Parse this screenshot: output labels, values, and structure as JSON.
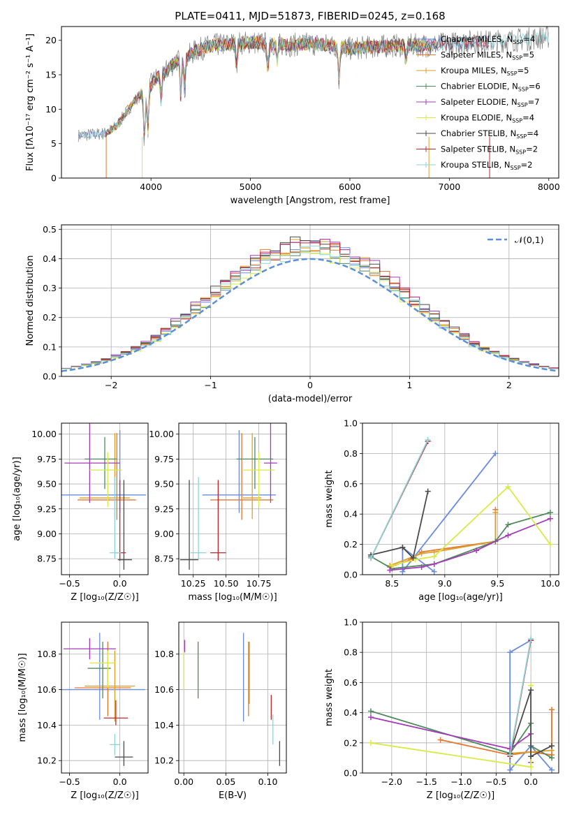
{
  "figure_title": "PLATE=0411, MJD=51873, FIBERID=0245, z=0.168",
  "model_colors": [
    "#6a8be0",
    "#e6772e",
    "#db9f2c",
    "#4d8a5c",
    "#a43bb8",
    "#d8ea45",
    "#4a4a4a",
    "#c0262c",
    "#8fd3d8"
  ],
  "chart_data": [
    {
      "id": "spectrum",
      "type": "line",
      "title": "PLATE=0411, MJD=51873, FIBERID=0245, z=0.168",
      "xlabel": "wavelength [Angstrom, rest frame]",
      "ylabel": "Flux [fλ10⁻¹⁷ erg cm⁻² s⁻¹ A⁻¹]",
      "xlim": [
        3100,
        8100
      ],
      "ylim": [
        0,
        22
      ],
      "xticks": [
        4000,
        5000,
        6000,
        7000,
        8000
      ],
      "yticks": [
        0,
        5,
        10,
        15,
        20
      ],
      "grid": false,
      "legend_position": "right",
      "data_series": {
        "name": "",
        "color": "#808080",
        "anchors_x": [
          3270,
          3400,
          3550,
          3650,
          3750,
          3850,
          3950,
          4050,
          4150,
          4250,
          4350,
          4450,
          4550,
          4650,
          4800,
          5000,
          5200,
          5400,
          5600,
          5800,
          6000,
          6200,
          6400,
          6600,
          6800,
          7000,
          7200,
          7400,
          7600,
          7800,
          8000
        ],
        "anchors_y": [
          6.2,
          6.3,
          6.5,
          7.5,
          9.5,
          11.5,
          12.5,
          14.5,
          15.5,
          17,
          17.5,
          18.5,
          19,
          19.3,
          19.5,
          19.7,
          19.5,
          19.3,
          19.5,
          19.3,
          18.8,
          19,
          19.2,
          19.3,
          19.3,
          19.5,
          19.8,
          19.8,
          20,
          20.2,
          20.5
        ]
      },
      "models": [
        {
          "name": "Chabrier MILES, N_SSP=4"
        },
        {
          "name": "Salpeter MILES, N_SSP=5"
        },
        {
          "name": "Kroupa MILES, N_SSP=5"
        },
        {
          "name": "Chabrier ELODIE, N_SSP=6"
        },
        {
          "name": "Salpeter ELODIE, N_SSP=7"
        },
        {
          "name": "Kroupa ELODIE, N_SSP=4"
        },
        {
          "name": "Chabrier STELIB, N_SSP=4"
        },
        {
          "name": "Salpeter STELIB, N_SSP=2"
        },
        {
          "name": "Kroupa STELIB, N_SSP=2"
        }
      ]
    },
    {
      "id": "residuals",
      "type": "histogram",
      "xlabel": "(data-model)/error",
      "ylabel": "Normed distribution",
      "xlim": [
        -2.5,
        2.5
      ],
      "ylim": [
        0,
        0.515
      ],
      "xticks": [
        -2,
        -1,
        0,
        1,
        2
      ],
      "yticks": [
        0.0,
        0.1,
        0.2,
        0.3,
        0.4,
        0.5
      ],
      "grid": true,
      "legend_position": "top-right",
      "reference_curve": {
        "name": "𝒩(0,1)",
        "mean": 0,
        "sigma": 1,
        "color": "#5b8fd8"
      },
      "bin_width": 0.1
    },
    {
      "id": "age_vs_Z",
      "type": "errorbar",
      "xlabel": "Z [log₁₀(Z/Z☉)]",
      "ylabel": "age  [log₁₀(age/yr)]",
      "xlim": [
        -0.58,
        0.28
      ],
      "ylim": [
        8.59,
        10.11
      ],
      "xticks": [
        -0.5,
        0.0
      ],
      "yticks": [
        8.75,
        9.0,
        9.25,
        9.5,
        9.75,
        10.0
      ],
      "grid": true,
      "points": [
        {
          "x": 0.0,
          "y": 9.39,
          "xerr": [
            0.58,
            0.26
          ],
          "yerr": [
            0.18,
            0.65
          ]
        },
        {
          "x": -0.03,
          "y": 9.34,
          "xerr": [
            0.39,
            0.19
          ],
          "yerr": [
            0.2,
            0.67
          ]
        },
        {
          "x": -0.05,
          "y": 9.36,
          "xerr": [
            0.35,
            0.15
          ],
          "yerr": [
            0.21,
            0.65
          ]
        },
        {
          "x": -0.15,
          "y": 9.75,
          "xerr": [
            0.2,
            0.12
          ],
          "yerr": [
            0.3,
            0.22
          ]
        },
        {
          "x": -0.3,
          "y": 9.71,
          "xerr": [
            0.25,
            0.3
          ],
          "yerr": [
            0.4,
            0.45
          ]
        },
        {
          "x": -0.12,
          "y": 9.64,
          "xerr": [
            0.18,
            0.14
          ],
          "yerr": [
            0.37,
            0.18
          ]
        },
        {
          "x": 0.04,
          "y": 8.74,
          "xerr": [
            0.06,
            0.08
          ],
          "yerr": [
            0.1,
            0.8
          ]
        },
        {
          "x": 0.0,
          "y": 8.81,
          "xerr": [
            0.05,
            0.06
          ],
          "yerr": [
            0.08,
            0.73
          ]
        },
        {
          "x": -0.05,
          "y": 8.81,
          "xerr": [
            0.05,
            0.06
          ],
          "yerr": [
            0.06,
            0.76
          ]
        }
      ]
    },
    {
      "id": "age_vs_mass",
      "type": "errorbar",
      "xlabel": "mass [log₁₀(M/M☉)]",
      "ylabel": "",
      "xlim": [
        10.14,
        10.96
      ],
      "ylim": [
        8.59,
        10.11
      ],
      "xticks": [
        10.25,
        10.5,
        10.75
      ],
      "yticks": [
        8.75,
        9.0,
        9.25,
        9.5,
        9.75,
        10.0
      ],
      "grid": true,
      "points": [
        {
          "x": 10.6,
          "y": 9.39,
          "xerr": [
            0.28,
            0.28
          ],
          "yerr": [
            0.18,
            0.65
          ]
        },
        {
          "x": 10.62,
          "y": 9.34,
          "xerr": [
            0.24,
            0.24
          ],
          "yerr": [
            0.2,
            0.67
          ]
        },
        {
          "x": 10.7,
          "y": 9.36,
          "xerr": [
            0.07,
            0.07
          ],
          "yerr": [
            0.21,
            0.65
          ]
        },
        {
          "x": 10.72,
          "y": 9.75,
          "xerr": [
            0.14,
            0.14
          ],
          "yerr": [
            0.3,
            0.22
          ]
        },
        {
          "x": 10.84,
          "y": 9.71,
          "xerr": [
            0.05,
            0.05
          ],
          "yerr": [
            0.4,
            0.45
          ]
        },
        {
          "x": 10.75,
          "y": 9.64,
          "xerr": [
            0.12,
            0.12
          ],
          "yerr": [
            0.37,
            0.18
          ]
        },
        {
          "x": 10.22,
          "y": 8.74,
          "xerr": [
            0.07,
            0.07
          ],
          "yerr": [
            0.1,
            0.8
          ]
        },
        {
          "x": 10.44,
          "y": 8.81,
          "xerr": [
            0.06,
            0.06
          ],
          "yerr": [
            0.08,
            0.73
          ]
        },
        {
          "x": 10.29,
          "y": 8.81,
          "xerr": [
            0.06,
            0.06
          ],
          "yerr": [
            0.06,
            0.76
          ]
        }
      ]
    },
    {
      "id": "massweight_vs_age",
      "type": "line",
      "xlabel": "age  [log₁₀(age/yr)]",
      "ylabel": "mass weight",
      "xlim": [
        8.22,
        10.08
      ],
      "ylim": [
        0,
        1
      ],
      "xticks": [
        8.5,
        9.0,
        9.5,
        10.0
      ],
      "yticks": [
        0.0,
        0.2,
        0.4,
        0.6,
        0.8,
        1.0
      ],
      "grid": true,
      "series": [
        {
          "x": [
            8.9,
            8.6,
            8.6,
            9.48
          ],
          "y": [
            0.02,
            0.18,
            0.02,
            0.8
          ]
        },
        {
          "x": [
            8.48,
            8.68,
            8.78,
            9.48,
            9.48
          ],
          "y": [
            0.05,
            0.1,
            0.15,
            0.22,
            0.43
          ]
        },
        {
          "x": [
            8.48,
            8.78,
            8.9,
            9.48,
            9.48
          ],
          "y": [
            0.06,
            0.14,
            0.15,
            0.22,
            0.41
          ]
        },
        {
          "x": [
            8.3,
            8.5,
            8.9,
            9.48,
            9.6,
            10.0
          ],
          "y": [
            0.12,
            0.04,
            0.07,
            0.22,
            0.33,
            0.41
          ]
        },
        {
          "x": [
            8.48,
            8.78,
            8.9,
            9.3,
            9.6,
            10.0
          ],
          "y": [
            0.03,
            0.05,
            0.07,
            0.16,
            0.26,
            0.37
          ]
        },
        {
          "x": [
            8.5,
            8.72,
            8.9,
            9.6,
            10.0
          ],
          "y": [
            0.06,
            0.1,
            0.12,
            0.58,
            0.2
          ]
        },
        {
          "x": [
            8.3,
            8.6,
            8.7,
            8.84
          ],
          "y": [
            0.13,
            0.18,
            0.11,
            0.55
          ]
        },
        {
          "x": [
            8.3,
            8.84
          ],
          "y": [
            0.11,
            0.88
          ]
        },
        {
          "x": [
            8.3,
            8.84
          ],
          "y": [
            0.11,
            0.89
          ]
        }
      ]
    },
    {
      "id": "mass_vs_Z",
      "type": "errorbar",
      "xlabel": "Z [log₁₀(Z/Z☉)]",
      "ylabel": "mass [log₁₀(M/M☉)]",
      "xlim": [
        -0.58,
        0.28
      ],
      "ylim": [
        10.13,
        10.98
      ],
      "xticks": [
        -0.5,
        0.0
      ],
      "yticks": [
        10.2,
        10.4,
        10.6,
        10.8
      ],
      "grid": true,
      "points": [
        {
          "x": -0.2,
          "y": 10.6,
          "xerr": [
            0.38,
            0.45
          ],
          "yerr": [
            0.17,
            0.32
          ]
        },
        {
          "x": -0.12,
          "y": 10.61,
          "xerr": [
            0.33,
            0.23
          ],
          "yerr": [
            0.16,
            0.26
          ]
        },
        {
          "x": -0.05,
          "y": 10.62,
          "xerr": [
            0.3,
            0.2
          ],
          "yerr": [
            0.2,
            0.2
          ]
        },
        {
          "x": -0.17,
          "y": 10.72,
          "xerr": [
            0.15,
            0.08
          ],
          "yerr": [
            0.17,
            0.15
          ]
        },
        {
          "x": -0.3,
          "y": 10.83,
          "xerr": [
            0.26,
            0.26
          ],
          "yerr": [
            0.06,
            0.06
          ]
        },
        {
          "x": -0.12,
          "y": 10.75,
          "xerr": [
            0.18,
            0.08
          ],
          "yerr": [
            0.14,
            0.07
          ]
        },
        {
          "x": 0.04,
          "y": 10.22,
          "xerr": [
            0.09,
            0.09
          ],
          "yerr": [
            0.05,
            0.09
          ]
        },
        {
          "x": -0.04,
          "y": 10.44,
          "xerr": [
            0.12,
            0.12
          ],
          "yerr": [
            0.04,
            0.1
          ]
        },
        {
          "x": -0.05,
          "y": 10.29,
          "xerr": [
            0.05,
            0.05
          ],
          "yerr": [
            0.06,
            0.06
          ]
        }
      ]
    },
    {
      "id": "mass_vs_EBV",
      "type": "errorbar",
      "xlabel": "E(B-V)",
      "ylabel": "",
      "xlim": [
        -0.006,
        0.122
      ],
      "ylim": [
        10.13,
        10.98
      ],
      "xticks": [
        0.0,
        0.05,
        0.1
      ],
      "yticks": [
        10.2,
        10.4,
        10.6,
        10.8
      ],
      "grid": true,
      "points": [
        {
          "x": 0.071,
          "y": 10.67,
          "xerr": [
            0,
            0
          ],
          "yerr": [
            0.25,
            0.25
          ]
        },
        {
          "x": 0.077,
          "y": 10.61,
          "xerr": [
            0,
            0
          ],
          "yerr": [
            0.16,
            0.26
          ]
        },
        {
          "x": 0.078,
          "y": 10.7,
          "xerr": [
            0,
            0
          ],
          "yerr": [
            0.18,
            0.17
          ]
        },
        {
          "x": 0.017,
          "y": 10.71,
          "xerr": [
            0,
            0
          ],
          "yerr": [
            0.16,
            0.16
          ]
        },
        {
          "x": 0.001,
          "y": 10.84,
          "xerr": [
            0,
            0
          ],
          "yerr": [
            0.03,
            0.04
          ]
        },
        {
          "x": 0.0,
          "y": 10.72,
          "xerr": [
            0,
            0
          ],
          "yerr": [
            0.12,
            0.1
          ]
        },
        {
          "x": 0.114,
          "y": 10.22,
          "xerr": [
            0,
            0
          ],
          "yerr": [
            0.05,
            0.09
          ]
        },
        {
          "x": 0.104,
          "y": 10.5,
          "xerr": [
            0,
            0
          ],
          "yerr": [
            0.07,
            0.07
          ]
        },
        {
          "x": 0.106,
          "y": 10.37,
          "xerr": [
            0,
            0
          ],
          "yerr": [
            0.08,
            0.09
          ]
        }
      ]
    },
    {
      "id": "massweight_vs_Z",
      "type": "line",
      "xlabel": "Z [log₁₀(Z/Z☉)]",
      "ylabel": "mass weight",
      "xlim": [
        -2.42,
        0.4
      ],
      "ylim": [
        0,
        1
      ],
      "xticks": [
        -2.0,
        -1.5,
        -1.0,
        -0.5,
        0.0
      ],
      "yticks": [
        0.0,
        0.2,
        0.4,
        0.6,
        0.8,
        1.0
      ],
      "grid": true,
      "series": [
        {
          "x": [
            0.3,
            0.0,
            -0.3,
            -0.3,
            0.0
          ],
          "y": [
            0.02,
            0.18,
            0.02,
            0.8,
            0.88
          ]
        },
        {
          "x": [
            -1.3,
            -0.3,
            0.0,
            0.3,
            0.3
          ],
          "y": [
            0.22,
            0.12,
            0.14,
            0.12,
            0.42
          ]
        },
        {
          "x": [
            -0.3,
            0.0,
            0.3
          ],
          "y": [
            0.13,
            0.14,
            0.15
          ]
        },
        {
          "x": [
            -2.3,
            -0.3,
            0.0,
            0.0,
            0.3
          ],
          "y": [
            0.41,
            0.13,
            0.33,
            0.18,
            0.1
          ]
        },
        {
          "x": [
            -2.3,
            -0.3,
            0.0,
            0.0
          ],
          "y": [
            0.37,
            0.16,
            0.26,
            0.07
          ]
        },
        {
          "x": [
            -2.3,
            0.0,
            0.0
          ],
          "y": [
            0.2,
            0.04,
            0.58
          ]
        },
        {
          "x": [
            -0.3,
            0.0,
            0.0,
            0.3
          ],
          "y": [
            0.13,
            0.55,
            0.11,
            0.18
          ]
        },
        {
          "x": [
            -0.3,
            0.0
          ],
          "y": [
            0.11,
            0.88
          ]
        },
        {
          "x": [
            -0.3,
            0.0
          ],
          "y": [
            0.12,
            0.89
          ]
        }
      ]
    }
  ]
}
